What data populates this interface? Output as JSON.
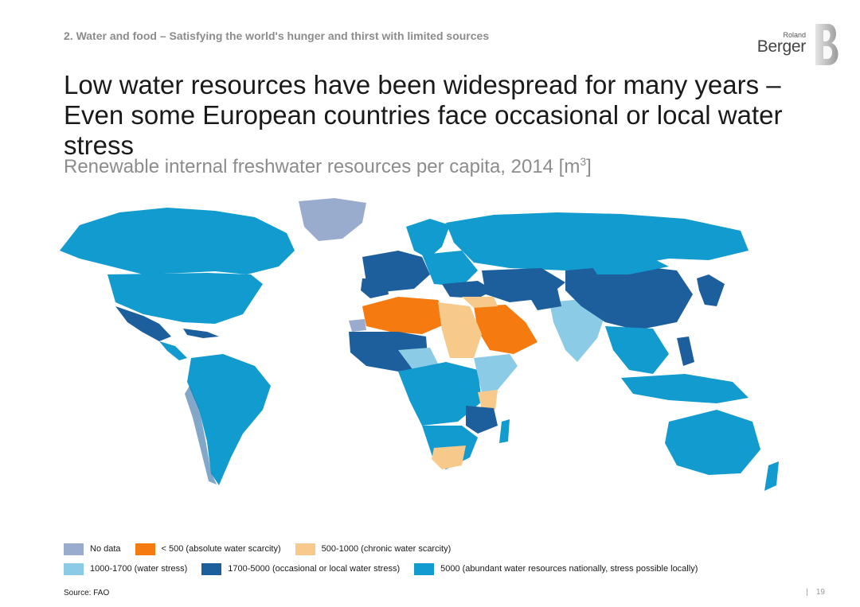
{
  "section_label": "2. Water and food – Satisfying the world's hunger and thirst with limited sources",
  "logo": {
    "line1": "Roland",
    "line2": "Berger"
  },
  "headline": "Low water resources have been widespread for many years – Even some European countries face occasional or local water stress",
  "subtitle": {
    "text": "Renewable internal freshwater resources per capita, 2014 [m",
    "superscript": "3",
    "closing": "]"
  },
  "colors": {
    "no_data": "#9aaccd",
    "absolute_scarcity": "#f57a10",
    "chronic_scarcity": "#f7c98a",
    "water_stress": "#8ccbe6",
    "occasional_stress": "#1c5f9c",
    "abundant": "#119bcf"
  },
  "legend": {
    "row1": [
      {
        "key": "no_data",
        "label": "No data"
      },
      {
        "key": "absolute_scarcity",
        "label": "< 500 (absolute water scarcity)"
      },
      {
        "key": "chronic_scarcity",
        "label": "500-1000 (chronic water scarcity)"
      }
    ],
    "row2": [
      {
        "key": "water_stress",
        "label": "1000-1700 (water stress)"
      },
      {
        "key": "occasional_stress",
        "label": "1700-5000 (occasional or local water stress)"
      },
      {
        "key": "abundant",
        "label": "5000 (abundant water resources nationally, stress possible locally)"
      }
    ]
  },
  "source": "Source: FAO",
  "page_number": "19"
}
